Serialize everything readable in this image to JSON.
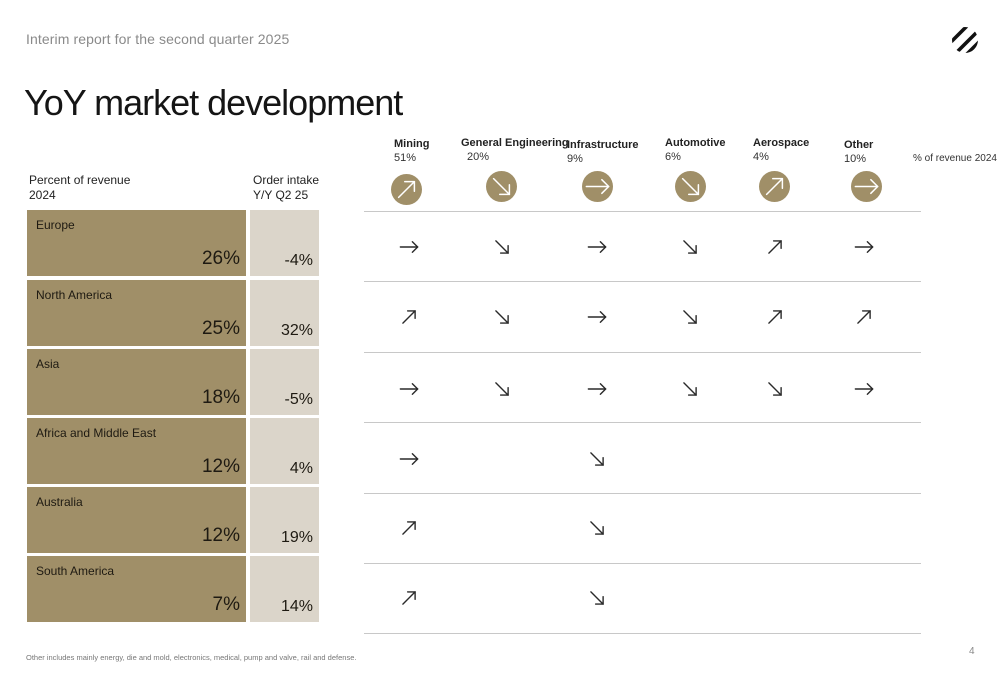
{
  "header": {
    "subtitle": "Interim report for the second quarter 2025",
    "title": "YoY market development",
    "logo_icon": "striped-ball-logo-icon"
  },
  "left_table": {
    "col1_header": [
      "Percent of revenue",
      "2024"
    ],
    "col2_header": [
      "Order intake",
      "Y/Y Q2 25"
    ],
    "rows": [
      {
        "region": "Europe",
        "revenue_pct": "26%",
        "order_intake": "-4%"
      },
      {
        "region": "North America",
        "revenue_pct": "25%",
        "order_intake": "32%"
      },
      {
        "region": "Asia",
        "revenue_pct": "18%",
        "order_intake": "-5%"
      },
      {
        "region": "Africa and Middle East",
        "revenue_pct": "12%",
        "order_intake": "4%"
      },
      {
        "region": "Australia",
        "revenue_pct": "12%",
        "order_intake": "19%"
      },
      {
        "region": "South America",
        "revenue_pct": "7%",
        "order_intake": "14%"
      }
    ]
  },
  "segments": [
    {
      "name": "Mining",
      "pct": "51%",
      "trend": "up"
    },
    {
      "name": "General Engineering",
      "pct": "20%",
      "trend": "down"
    },
    {
      "name": "Infrastructure",
      "pct": "9%",
      "trend": "flat"
    },
    {
      "name": "Automotive",
      "pct": "6%",
      "trend": "down"
    },
    {
      "name": "Aerospace",
      "pct": "4%",
      "trend": "up"
    },
    {
      "name": "Other",
      "pct": "10%",
      "trend": "flat"
    }
  ],
  "segments_note": "% of revenue 2024",
  "matrix": [
    [
      "flat",
      "down",
      "flat",
      "down",
      "up",
      "flat"
    ],
    [
      "up",
      "down",
      "flat",
      "down",
      "up",
      "up"
    ],
    [
      "flat",
      "down",
      "flat",
      "down",
      "down",
      "flat"
    ],
    [
      "flat",
      null,
      "down",
      null,
      null,
      null
    ],
    [
      "up",
      null,
      "down",
      null,
      null,
      null
    ],
    [
      "up",
      null,
      "down",
      null,
      null,
      null
    ]
  ],
  "colors": {
    "accent": "#a08f68",
    "light": "#dbd5ca"
  },
  "footnote": "Other includes mainly energy, die and mold, electronics, medical, pump and valve, rail and defense.",
  "page_number": "4"
}
